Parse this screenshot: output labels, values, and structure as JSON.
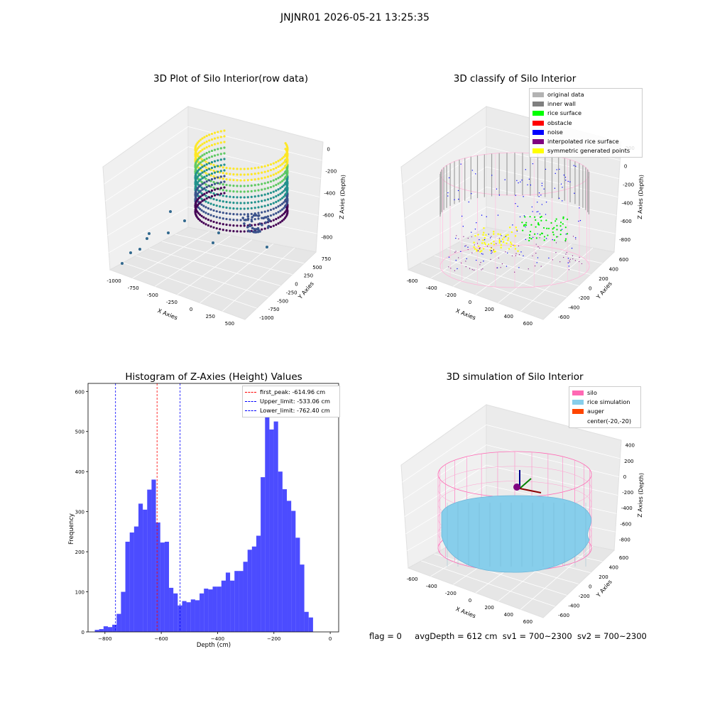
{
  "suptitle": "JNJNR01 2026-05-21 13:25:35",
  "panels": {
    "p1": {
      "title": "3D Plot of Silo Interior(row data)",
      "xlabel": "X Axies",
      "ylabel": "Y Axies",
      "zlabel": "Z Axies (Depth)",
      "xticks": [
        "-1000",
        "-750",
        "-500",
        "-250",
        "0",
        "250",
        "500"
      ],
      "yticks": [
        "750",
        "500",
        "250",
        "0",
        "-250",
        "-500",
        "-750",
        "-1000"
      ],
      "zticks": [
        "0",
        "-200",
        "-400",
        "-600",
        "-800"
      ],
      "colormap": "viridis"
    },
    "p2": {
      "title": "3D classify of Silo Interior",
      "xlabel": "X Axies",
      "ylabel": "Y Axies",
      "zlabel": "Z Axies (Depth)",
      "xticks": [
        "-600",
        "-400",
        "-200",
        "0",
        "200",
        "400",
        "600"
      ],
      "yticks": [
        "600",
        "400",
        "200",
        "0",
        "-200",
        "-400",
        "-600"
      ],
      "zticks": [
        "200",
        "0",
        "-200",
        "-400",
        "-600",
        "-800"
      ],
      "legend": [
        {
          "label": "original data",
          "color": "#b3b3b3"
        },
        {
          "label": "inner wall",
          "color": "#808080"
        },
        {
          "label": "rice surface",
          "color": "#00ff00"
        },
        {
          "label": "obstacle",
          "color": "#ff0000"
        },
        {
          "label": "noise",
          "color": "#0000ff"
        },
        {
          "label": "interpolated rice surface",
          "color": "#800080"
        },
        {
          "label": "symmetric generated points",
          "color": "#ffff00"
        }
      ]
    },
    "p4": {
      "title": "3D simulation of Silo Interior",
      "xlabel": "X Axies",
      "ylabel": "Y Axies",
      "zlabel": "Z Axies (Depth)",
      "xticks": [
        "-600",
        "-400",
        "-200",
        "0",
        "200",
        "400",
        "600"
      ],
      "yticks": [
        "600",
        "400",
        "200",
        "0",
        "-200",
        "-400",
        "-600"
      ],
      "zticks": [
        "400",
        "200",
        "0",
        "-200",
        "-400",
        "-600",
        "-800"
      ],
      "legend": [
        {
          "label": "silo",
          "color": "#ff69b4"
        },
        {
          "label": "rice simulation",
          "color": "#87ceeb"
        },
        {
          "label": "auger",
          "color": "#ff4500"
        },
        {
          "label": "center(-20,-20)",
          "color": ""
        }
      ]
    }
  },
  "chart_data": {
    "type": "bar",
    "title": "Histogram of Z-Axies (Height) Values",
    "xlabel": "Depth (cm)",
    "ylabel": "Frequency",
    "xlim": [
      -860,
      30
    ],
    "ylim": [
      0,
      620
    ],
    "xticks": [
      -800,
      -600,
      -400,
      -200,
      0
    ],
    "yticks": [
      0,
      100,
      200,
      300,
      400,
      500,
      600
    ],
    "bin_width": 15.5,
    "bin_start": -836,
    "values": [
      5,
      7,
      14,
      12,
      18,
      45,
      100,
      225,
      248,
      263,
      320,
      305,
      355,
      380,
      273,
      223,
      225,
      110,
      96,
      66,
      77,
      74,
      81,
      79,
      96,
      108,
      106,
      113,
      113,
      128,
      148,
      128,
      152,
      152,
      175,
      205,
      213,
      240,
      386,
      540,
      505,
      525,
      400,
      356,
      327,
      302,
      235,
      168,
      50,
      36
    ],
    "bar_color": "#0000ff",
    "vlines": [
      {
        "label": "first_peak: -614.96 cm",
        "x": -614.96,
        "color": "#ff0000"
      },
      {
        "label": "Upper_limit: -533.06 cm",
        "x": -533.06,
        "color": "#0000ff"
      },
      {
        "label": "Lower_limit: -762.40 cm",
        "x": -762.4,
        "color": "#0000ff"
      }
    ],
    "legend_position": "top-right"
  },
  "footer": {
    "flag": "flag = 0",
    "avg": "avgDepth = 612 cm",
    "sv1": "sv1 = 700~2300",
    "sv2": "sv2 = 700~2300"
  }
}
